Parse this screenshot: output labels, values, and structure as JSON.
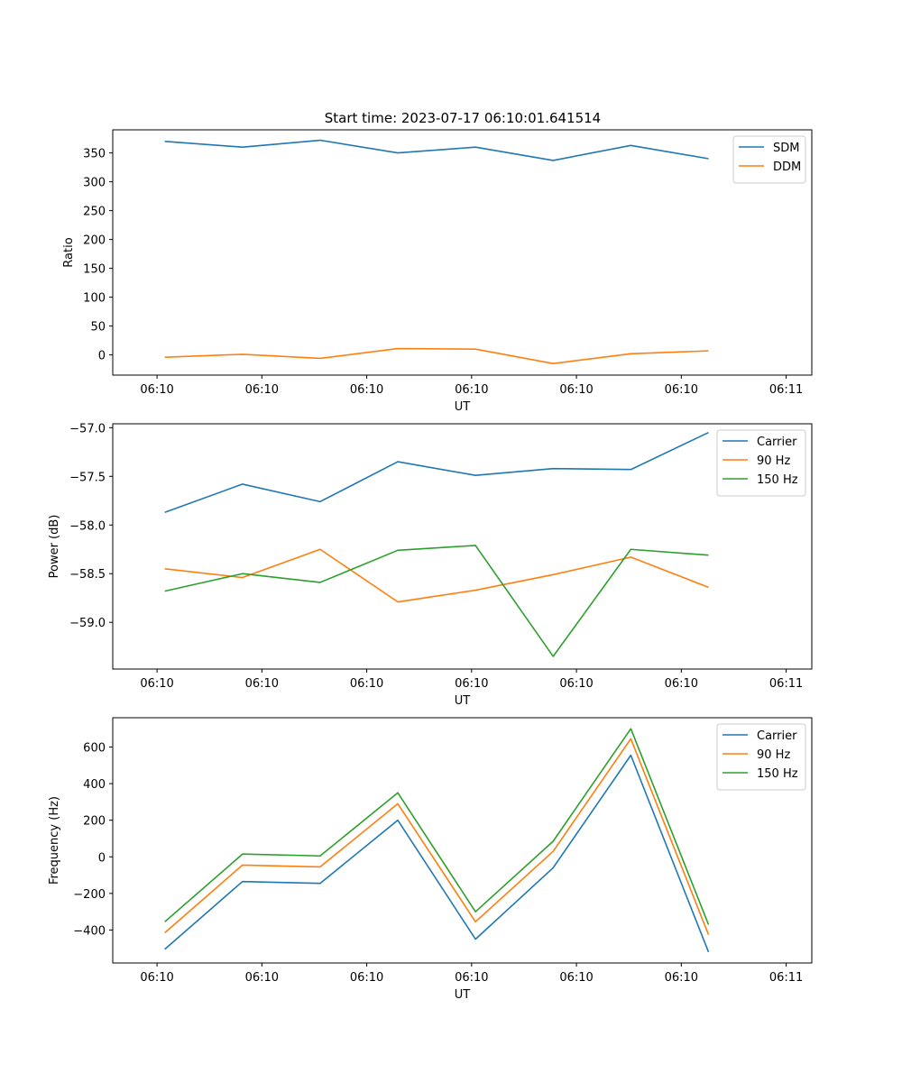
{
  "figure": {
    "title": "Start time: 2023-07-17 06:10:01.641514"
  },
  "chart_data": [
    {
      "type": "line",
      "title": "Start time: 2023-07-17 06:10:01.641514",
      "xlabel": "UT",
      "ylabel": "Ratio",
      "x_tick_labels": [
        "06:10",
        "06:10",
        "06:10",
        "06:10",
        "06:10",
        "06:10",
        "06:11"
      ],
      "x": [
        1,
        2,
        3,
        4,
        5,
        6,
        7,
        8
      ],
      "xlim": [
        0.33,
        9.33
      ],
      "ylim": [
        -35,
        390
      ],
      "yticks": [
        0,
        50,
        100,
        150,
        200,
        250,
        300,
        350
      ],
      "legend_location": "top-right",
      "series": [
        {
          "name": "SDM",
          "color": "#1f77b4",
          "values": [
            370,
            360,
            372,
            350,
            360,
            337,
            363,
            340
          ]
        },
        {
          "name": "DDM",
          "color": "#ff7f0e",
          "values": [
            -4,
            1,
            -6,
            11,
            10,
            -15,
            2,
            7
          ]
        }
      ]
    },
    {
      "type": "line",
      "title": "",
      "xlabel": "UT",
      "ylabel": "Power (dB)",
      "x_tick_labels": [
        "06:10",
        "06:10",
        "06:10",
        "06:10",
        "06:10",
        "06:10",
        "06:11"
      ],
      "x": [
        1,
        2,
        3,
        4,
        5,
        6,
        7,
        8
      ],
      "xlim": [
        0.33,
        9.33
      ],
      "ylim": [
        -59.48,
        -56.96
      ],
      "yticks": [
        -59.0,
        -58.5,
        -58.0,
        -57.5,
        -57.0
      ],
      "ytick_labels": [
        "−59.0",
        "−58.5",
        "−58.0",
        "−57.5",
        "−57.0"
      ],
      "legend_location": "top-right",
      "series": [
        {
          "name": "Carrier",
          "color": "#1f77b4",
          "values": [
            -57.87,
            -57.58,
            -57.76,
            -57.35,
            -57.49,
            -57.42,
            -57.43,
            -57.05
          ]
        },
        {
          "name": "90 Hz",
          "color": "#ff7f0e",
          "values": [
            -58.45,
            -58.54,
            -58.25,
            -58.79,
            -58.67,
            -58.51,
            -58.33,
            -58.64
          ]
        },
        {
          "name": "150 Hz",
          "color": "#2ca02c",
          "values": [
            -58.68,
            -58.5,
            -58.59,
            -58.26,
            -58.21,
            -59.35,
            -58.25,
            -58.31
          ]
        }
      ]
    },
    {
      "type": "line",
      "title": "",
      "xlabel": "UT",
      "ylabel": "Frequency (Hz)",
      "x_tick_labels": [
        "06:10",
        "06:10",
        "06:10",
        "06:10",
        "06:10",
        "06:10",
        "06:11"
      ],
      "x": [
        1,
        2,
        3,
        4,
        5,
        6,
        7,
        8
      ],
      "xlim": [
        0.33,
        9.33
      ],
      "ylim": [
        -580,
        760
      ],
      "yticks": [
        -400,
        -200,
        0,
        200,
        400,
        600
      ],
      "ytick_labels": [
        "−400",
        "−200",
        "0",
        "200",
        "400",
        "600"
      ],
      "legend_location": "top-right",
      "series": [
        {
          "name": "Carrier",
          "color": "#1f77b4",
          "values": [
            -505,
            -135,
            -145,
            200,
            -450,
            -60,
            555,
            -520
          ]
        },
        {
          "name": "90 Hz",
          "color": "#ff7f0e",
          "values": [
            -415,
            -45,
            -55,
            290,
            -355,
            30,
            645,
            -425
          ]
        },
        {
          "name": "150 Hz",
          "color": "#2ca02c",
          "values": [
            -355,
            15,
            5,
            350,
            -300,
            85,
            700,
            -370
          ]
        }
      ]
    }
  ]
}
